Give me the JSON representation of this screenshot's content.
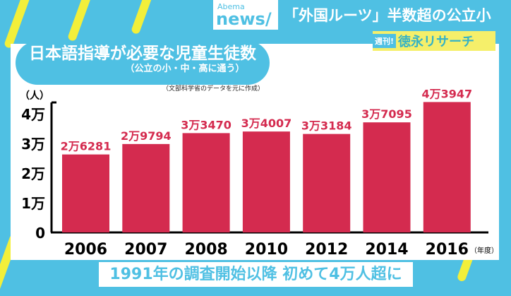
{
  "header": {
    "logo_top": "Abema",
    "logo_bottom": "news/",
    "headline": "「外国ルーツ」半数超の公立小"
  },
  "corner": {
    "weekly": "週刊!",
    "show": "徳永リサーチ"
  },
  "caption": "1991年の調査開始以降 初めて4万人超に",
  "chart_data": {
    "type": "bar",
    "title": "日本語指導が必要な児童生徒数",
    "subtitle": "（公立の小・中・高に通う）",
    "source": "（文部科学省のデータを元に作成）",
    "ylabel": "（人）",
    "xlabel": "（年度）",
    "categories": [
      "2006",
      "2007",
      "2008",
      "2010",
      "2012",
      "2014",
      "2016"
    ],
    "values": [
      26281,
      29794,
      33470,
      34007,
      33184,
      37095,
      43947
    ],
    "data_labels": [
      "2万6281",
      "2万9794",
      "3万3470",
      "3万4007",
      "3万3184",
      "3万7095",
      "4万3947"
    ],
    "yticks": [
      0,
      10000,
      20000,
      30000,
      40000
    ],
    "ytick_labels": [
      "0",
      "1万",
      "2万",
      "3万",
      "4万"
    ],
    "ylim": [
      0,
      45000
    ],
    "bar_color": "#d42b4f"
  }
}
